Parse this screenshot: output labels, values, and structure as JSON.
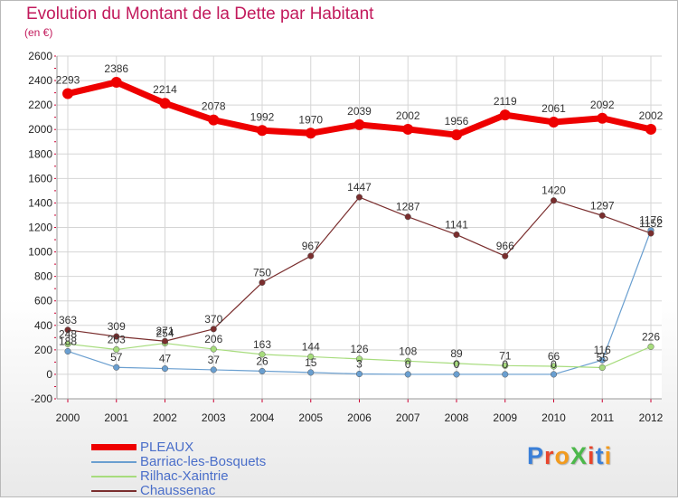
{
  "title": "Evolution du Montant de la Dette par Habitant",
  "unit": "(en €)",
  "brand": "ProXiti",
  "colors": {
    "title": "#c21a5c",
    "grid_tick": "#cc0033",
    "pleaux": "#ee0000",
    "barriac": "#6a9fd0",
    "rilhac": "#a7dc7d",
    "chaussenac": "#7a2e2e"
  },
  "chart_data": {
    "type": "line",
    "x": [
      "2000",
      "2001",
      "2002",
      "2003",
      "2004",
      "2005",
      "2006",
      "2007",
      "2008",
      "2009",
      "2010",
      "2011",
      "2012"
    ],
    "ylim": [
      -200,
      2600
    ],
    "yticks": [
      "-200",
      "0",
      "200",
      "400",
      "600",
      "800",
      "1000",
      "1200",
      "1400",
      "1600",
      "1800",
      "2000",
      "2200",
      "2400",
      "2600"
    ],
    "legend_position": "bottom-left",
    "series": [
      {
        "name": "PLEAUX",
        "color": "#ee0000",
        "values": [
          2293,
          2386,
          2214,
          2078,
          1992,
          1970,
          2039,
          2002,
          1956,
          2119,
          2061,
          2092,
          2002
        ],
        "labels": [
          "2293",
          "2386",
          "2214",
          "2078",
          "1992",
          "1970",
          "2039",
          "2002",
          "1956",
          "2119",
          "2061",
          "2092",
          "2002"
        ]
      },
      {
        "name": "Barriac-les-Bosquets",
        "color": "#6a9fd0",
        "values": [
          188,
          57,
          47,
          37,
          26,
          15,
          3,
          0,
          0,
          0,
          0,
          116,
          1176
        ],
        "labels": [
          "188",
          "57",
          "47",
          "37",
          "26",
          "15",
          "3",
          "0",
          "0",
          "0",
          "0",
          "116",
          "1176"
        ]
      },
      {
        "name": "Rilhac-Xaintrie",
        "color": "#a7dc7d",
        "values": [
          248,
          203,
          254,
          206,
          163,
          144,
          126,
          108,
          89,
          71,
          66,
          55,
          226
        ],
        "labels": [
          "248",
          "203",
          "254",
          "206",
          "163",
          "144",
          "126",
          "108",
          "89",
          "71",
          "66",
          "55",
          "226"
        ]
      },
      {
        "name": "Chaussenac",
        "color": "#7a2e2e",
        "values": [
          363,
          309,
          271,
          370,
          750,
          967,
          1447,
          1287,
          1141,
          966,
          1420,
          1297,
          1152
        ],
        "labels": [
          "363",
          "309",
          "271",
          "370",
          "750",
          "967",
          "1447",
          "1287",
          "1141",
          "966",
          "1420",
          "1297",
          "1152"
        ]
      }
    ]
  }
}
